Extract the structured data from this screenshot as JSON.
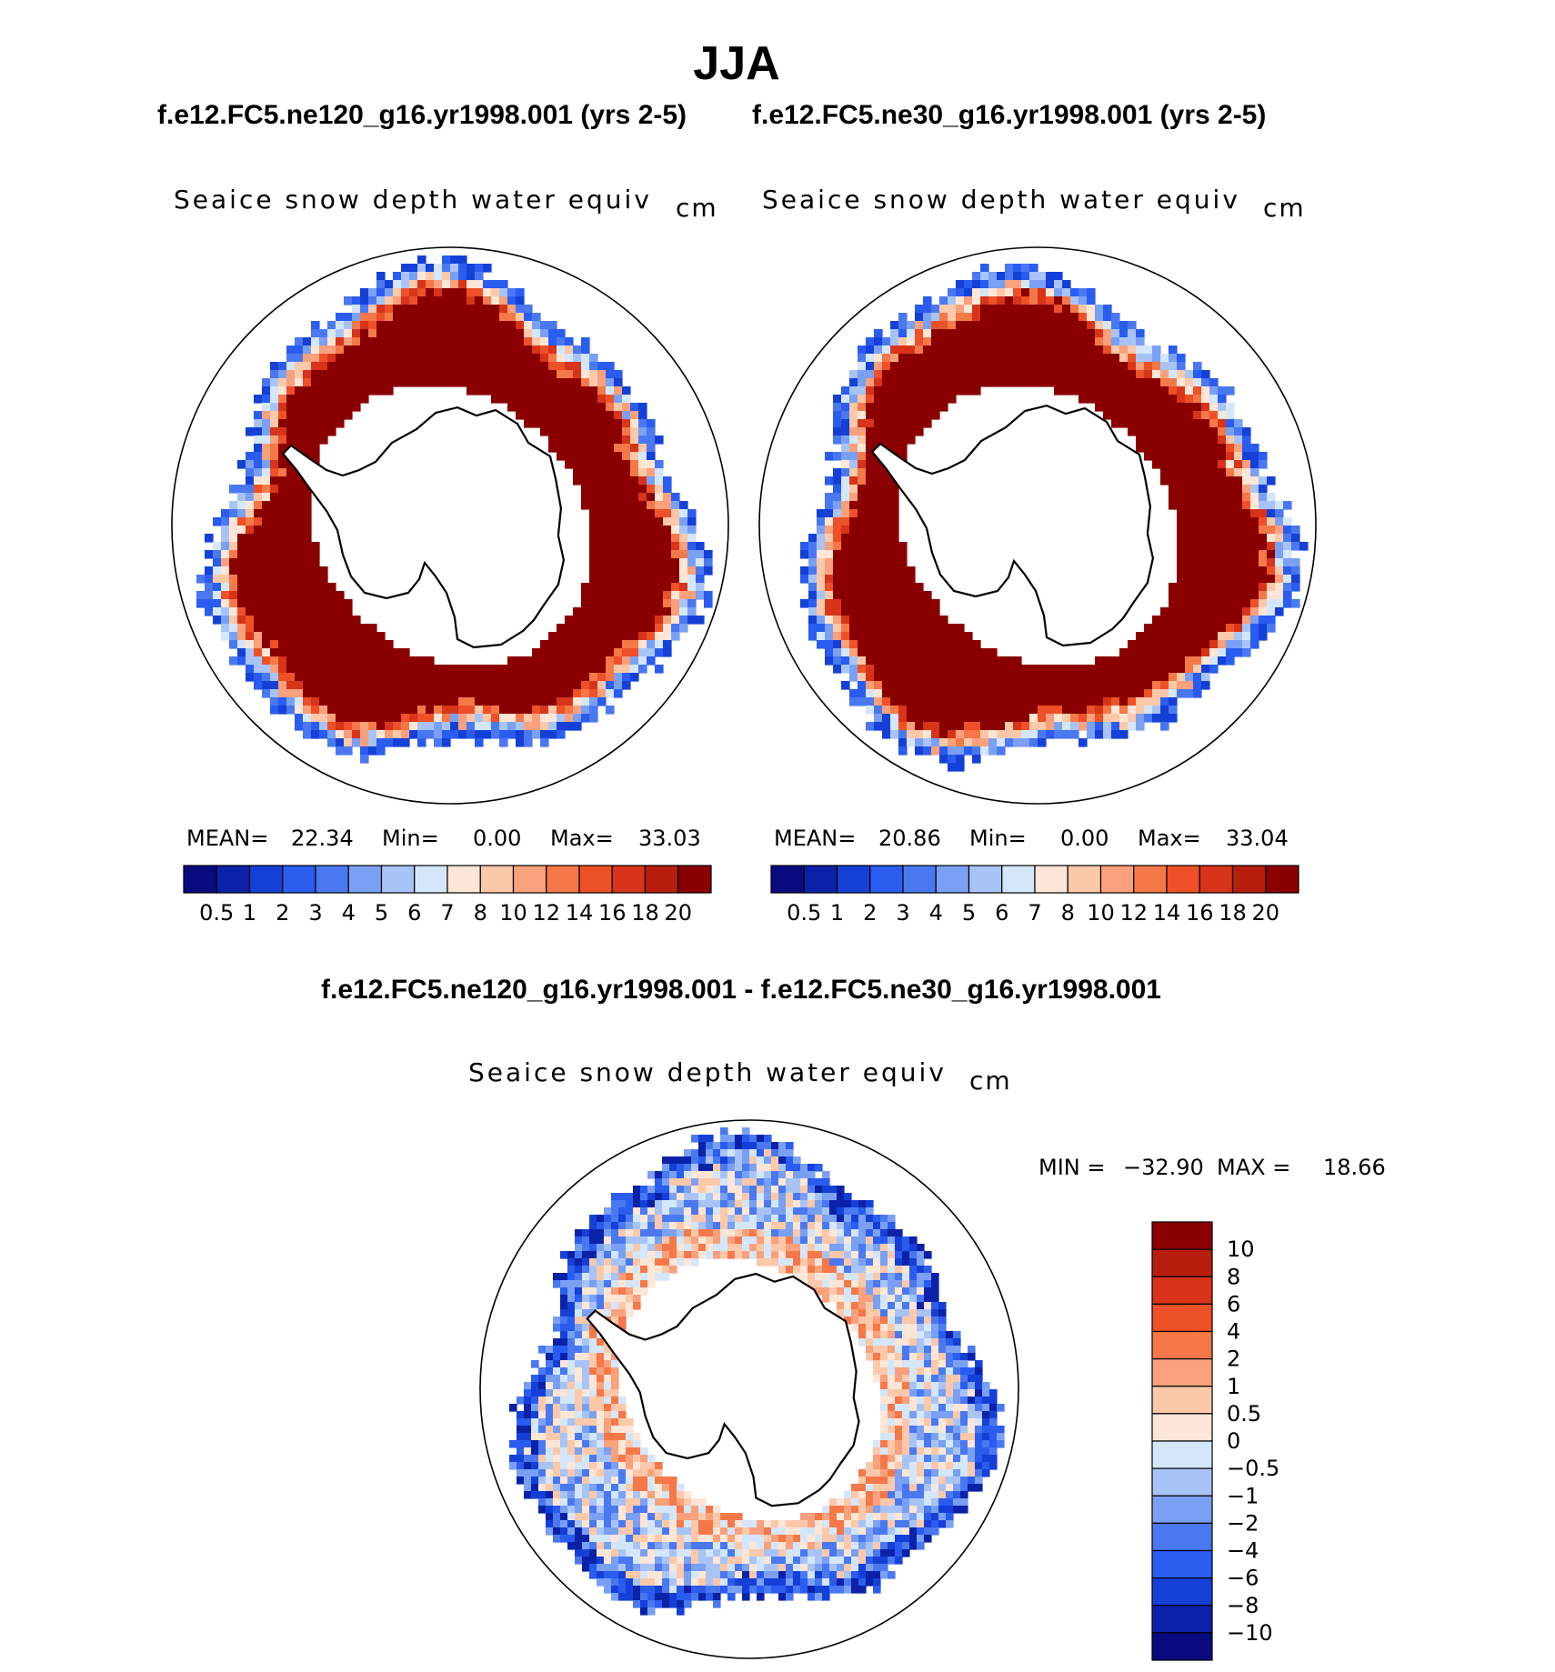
{
  "figure": {
    "title": "JJA",
    "case_left": "f.e12.FC5.ne120_g16.yr1998.001 (yrs 2-5)",
    "case_right": "f.e12.FC5.ne30_g16.yr1998.001 (yrs 2-5)",
    "diff_title": "f.e12.FC5.ne120_g16.yr1998.001 - f.e12.FC5.ne30_g16.yr1998.001"
  },
  "chart_data": [
    {
      "type": "heatmap",
      "projection": "south-polar-stereographic",
      "variable": "Seaice snow depth water equiv",
      "units": "cm",
      "case": "f.e12.FC5.ne120_g16.yr1998.001 (yrs 2-5)",
      "stats": {
        "mean_label": "MEAN=",
        "mean": "22.34",
        "min_label": "Min=",
        "min": "0.00",
        "max_label": "Max=",
        "max": "33.03"
      },
      "colorbar": {
        "orientation": "horizontal",
        "levels": [
          "0.5",
          "1",
          "2",
          "3",
          "4",
          "5",
          "6",
          "7",
          "8",
          "10",
          "12",
          "14",
          "16",
          "18",
          "20"
        ],
        "colors": [
          "#0a0a80",
          "#0b22a8",
          "#1540d8",
          "#2a5cf0",
          "#4a78f0",
          "#7aa0f4",
          "#a8c4f6",
          "#d4e6fa",
          "#fde6d6",
          "#fcc8aa",
          "#f9a07c",
          "#f57848",
          "#ee5028",
          "#d8341a",
          "#b81e0e",
          "#8a0000"
        ]
      },
      "field": {
        "max_color": "#8a0000",
        "ice_edge": "blue",
        "land_color": "#ffffff"
      }
    },
    {
      "type": "heatmap",
      "projection": "south-polar-stereographic",
      "variable": "Seaice snow depth water equiv",
      "units": "cm",
      "case": "f.e12.FC5.ne30_g16.yr1998.001 (yrs 2-5)",
      "stats": {
        "mean_label": "MEAN=",
        "mean": "20.86",
        "min_label": "Min=",
        "min": "0.00",
        "max_label": "Max=",
        "max": "33.04"
      },
      "colorbar": {
        "orientation": "horizontal",
        "levels": [
          "0.5",
          "1",
          "2",
          "3",
          "4",
          "5",
          "6",
          "7",
          "8",
          "10",
          "12",
          "14",
          "16",
          "18",
          "20"
        ],
        "colors": [
          "#0a0a80",
          "#0b22a8",
          "#1540d8",
          "#2a5cf0",
          "#4a78f0",
          "#7aa0f4",
          "#a8c4f6",
          "#d4e6fa",
          "#fde6d6",
          "#fcc8aa",
          "#f9a07c",
          "#f57848",
          "#ee5028",
          "#d8341a",
          "#b81e0e",
          "#8a0000"
        ]
      },
      "field": {
        "max_color": "#8a0000",
        "ice_edge": "blue",
        "land_color": "#ffffff"
      }
    },
    {
      "type": "heatmap",
      "projection": "south-polar-stereographic",
      "variable": "Seaice snow depth water equiv",
      "units": "cm",
      "case": "f.e12.FC5.ne120_g16.yr1998.001 - f.e12.FC5.ne30_g16.yr1998.001",
      "stats": {
        "min_label": "MIN =",
        "min": "−32.90",
        "max_label": "MAX =",
        "max": "18.66"
      },
      "colorbar": {
        "orientation": "vertical",
        "levels": [
          "10",
          "8",
          "6",
          "4",
          "2",
          "1",
          "0.5",
          "0",
          "−0.5",
          "−1",
          "−2",
          "−4",
          "−6",
          "−8",
          "−10"
        ],
        "colors": [
          "#8a0000",
          "#b81e0e",
          "#d8341a",
          "#ee5028",
          "#f57848",
          "#f9a07c",
          "#fcc8aa",
          "#fde6d6",
          "#d4e6fa",
          "#a8c4f6",
          "#7aa0f4",
          "#4a78f0",
          "#2a5cf0",
          "#1540d8",
          "#0b22a8",
          "#0a0a80"
        ]
      }
    }
  ]
}
